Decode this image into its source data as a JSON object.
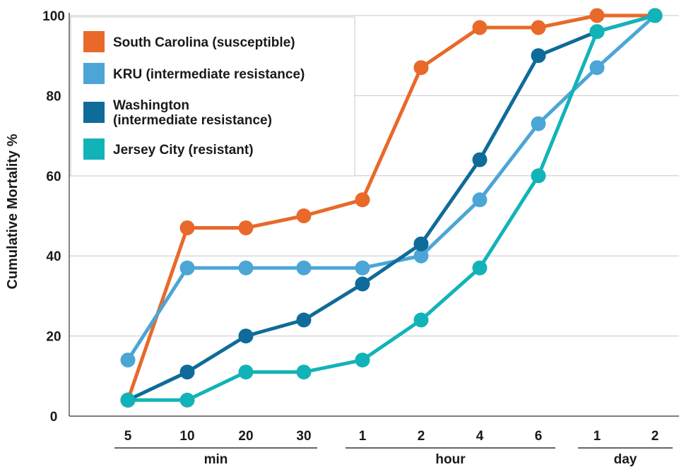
{
  "chart_data": {
    "type": "line",
    "ylabel": "Cumulative Mortality %",
    "xlabel": "",
    "ylim": [
      0,
      100
    ],
    "yticks": [
      "0",
      "20",
      "40",
      "60",
      "80",
      "100"
    ],
    "categories": [
      "5",
      "10",
      "20",
      "30",
      "1",
      "2",
      "4",
      "6",
      "1",
      "2"
    ],
    "groups": [
      {
        "label": "min",
        "from": 0,
        "to": 3
      },
      {
        "label": "hour",
        "from": 4,
        "to": 7
      },
      {
        "label": "day",
        "from": 8,
        "to": 9
      }
    ],
    "grid": true,
    "legend_position": "top-left",
    "series": [
      {
        "name": "South Carolina (susceptible)",
        "color": "#e8692a",
        "values": [
          4,
          47,
          47,
          50,
          54,
          87,
          97,
          97,
          100,
          100
        ]
      },
      {
        "name": "KRU (intermediate resistance)",
        "color": "#4ba6d6",
        "values": [
          14,
          37,
          37,
          37,
          37,
          40,
          54,
          73,
          87,
          100
        ]
      },
      {
        "name": "Washington\n(intermediate resistance)",
        "color": "#0f6b99",
        "values": [
          4,
          11,
          20,
          24,
          33,
          43,
          64,
          90,
          96,
          100
        ]
      },
      {
        "name": "Jersey City (resistant)",
        "color": "#12b3b8",
        "values": [
          4,
          4,
          11,
          11,
          14,
          24,
          37,
          60,
          96,
          100
        ]
      }
    ]
  }
}
